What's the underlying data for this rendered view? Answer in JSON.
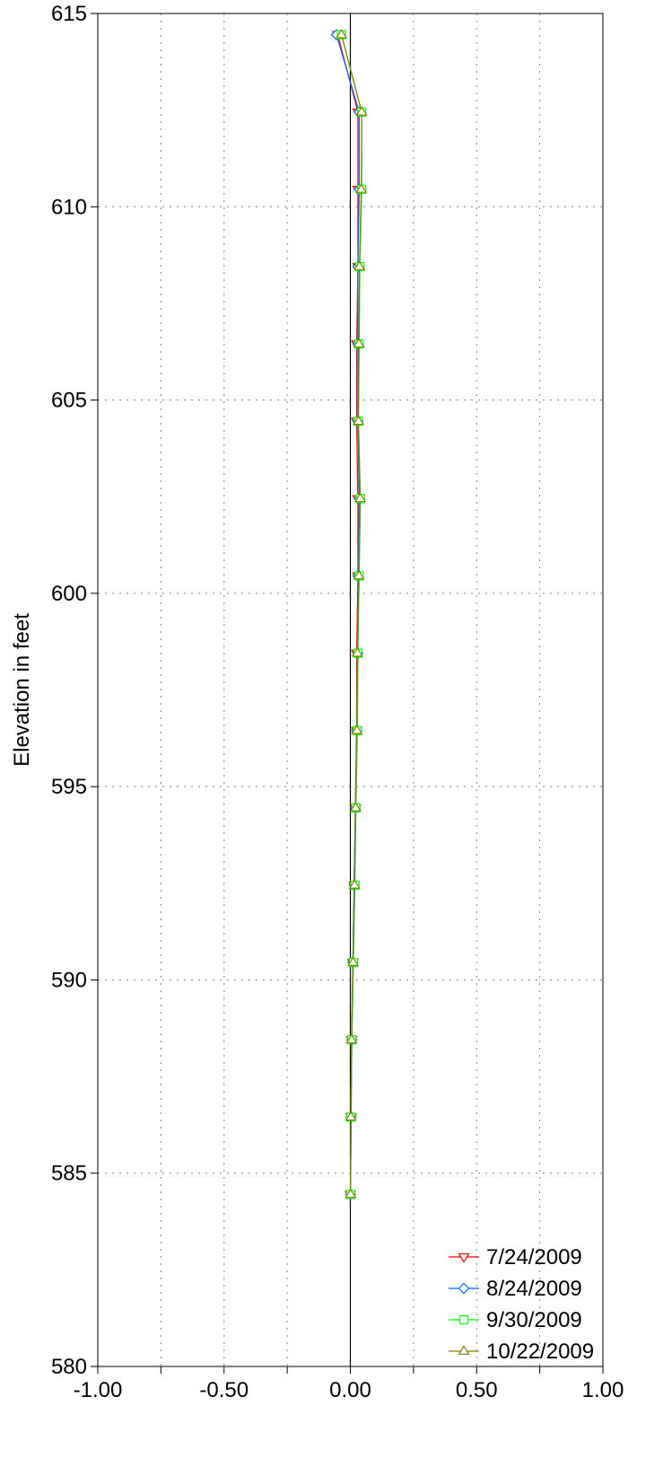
{
  "chart_data": {
    "type": "line",
    "title": "",
    "xlabel": "",
    "ylabel": "Elevation in feet",
    "xlim": [
      -1.0,
      1.0
    ],
    "ylim": [
      580,
      615
    ],
    "x_ticks": [
      -1.0,
      -0.75,
      -0.5,
      -0.25,
      0.0,
      0.25,
      0.5,
      0.75,
      1.0
    ],
    "x_tick_labels": [
      "-1.00",
      "",
      "-0.50",
      "",
      "0.00",
      "",
      "0.50",
      "",
      "1.00"
    ],
    "y_ticks": [
      580,
      585,
      590,
      595,
      600,
      605,
      610,
      615
    ],
    "y_tick_labels": [
      "580",
      "585",
      "590",
      "595",
      "600",
      "605",
      "610",
      "615"
    ],
    "grid": true,
    "zero_line": true,
    "legend_position": "bottom-right",
    "elevations": [
      614.45,
      612.45,
      610.45,
      608.45,
      606.45,
      604.45,
      602.45,
      600.45,
      598.45,
      596.45,
      594.45,
      592.45,
      590.45,
      588.45,
      586.45,
      584.45
    ],
    "series": [
      {
        "name": "7/24/2009",
        "color": "#ff0000",
        "marker": "triangle-down",
        "values": [
          -0.05,
          0.03,
          0.03,
          0.03,
          0.025,
          0.025,
          0.03,
          0.03,
          0.025,
          0.025,
          0.02,
          0.015,
          0.01,
          0.005,
          0.003,
          0.0
        ]
      },
      {
        "name": "8/24/2009",
        "color": "#0066ff",
        "marker": "diamond",
        "values": [
          -0.055,
          0.035,
          0.035,
          0.03,
          0.03,
          0.03,
          0.035,
          0.03,
          0.03,
          0.025,
          0.02,
          0.015,
          0.01,
          0.006,
          0.003,
          0.001
        ]
      },
      {
        "name": "9/30/2009",
        "color": "#00ff00",
        "marker": "square",
        "values": [
          -0.035,
          0.045,
          0.045,
          0.038,
          0.035,
          0.032,
          0.04,
          0.035,
          0.03,
          0.028,
          0.022,
          0.018,
          0.012,
          0.006,
          0.002,
          0.001
        ]
      },
      {
        "name": "10/22/2009",
        "color": "#808000",
        "marker": "triangle-up",
        "values": [
          -0.035,
          0.045,
          0.043,
          0.036,
          0.034,
          0.032,
          0.039,
          0.034,
          0.028,
          0.026,
          0.021,
          0.017,
          0.011,
          0.005,
          0.002,
          0.001
        ]
      }
    ]
  }
}
